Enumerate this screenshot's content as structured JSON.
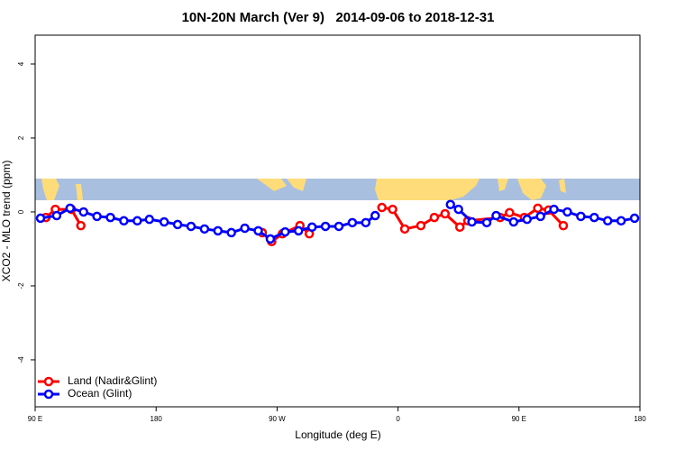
{
  "chart_data": {
    "type": "line",
    "title": "10N-20N March (Ver 9)   2014-09-06 to 2018-12-31",
    "xlabel": "Longitude (deg E)",
    "ylabel": "XCO2 - MLO trend (ppm)",
    "xlim": [
      90,
      540
    ],
    "ylim": [
      -5.27,
      4.78
    ],
    "xticks": [
      {
        "value": 90,
        "label": "90 E"
      },
      180,
      {
        "value": 270,
        "label": "90 W"
      },
      {
        "value": 360,
        "label": "0"
      },
      {
        "value": 450,
        "label": "90 E"
      },
      {
        "value": 540,
        "label": "180"
      }
    ],
    "yticks": [
      -4,
      -2,
      0,
      2,
      4
    ],
    "legend": "bottom-left",
    "series": [
      {
        "name": "Land (Nadir&Glint)",
        "color": "#ff0000",
        "x": [
          98,
          105,
          117,
          124,
          null,
          259,
          266,
          274,
          287,
          294,
          null,
          348,
          356,
          365,
          377,
          387,
          395,
          406,
          412,
          436,
          443,
          454,
          464,
          472,
          483
        ],
        "values": [
          -0.15,
          0.07,
          0.07,
          -0.37,
          null,
          -0.56,
          -0.8,
          -0.59,
          -0.37,
          -0.59,
          null,
          0.12,
          0.07,
          -0.46,
          -0.37,
          -0.15,
          -0.05,
          -0.41,
          -0.24,
          -0.15,
          -0.02,
          -0.15,
          0.1,
          0.05,
          -0.37
        ]
      },
      {
        "name": "Ocean (Glint)",
        "color": "#0000ff",
        "x": [
          94,
          106,
          116,
          126,
          136,
          146,
          156,
          166,
          175,
          186,
          196,
          206,
          216,
          226,
          236,
          246,
          256,
          265,
          276,
          286,
          296,
          306,
          316,
          326,
          336,
          343,
          null,
          399,
          405,
          415,
          426,
          433,
          446,
          456,
          466,
          476,
          486,
          496,
          506,
          516,
          526,
          536
        ],
        "values": [
          -0.17,
          -0.1,
          0.1,
          0,
          -0.12,
          -0.15,
          -0.24,
          -0.24,
          -0.2,
          -0.27,
          -0.34,
          -0.39,
          -0.46,
          -0.51,
          -0.56,
          -0.44,
          -0.51,
          -0.73,
          -0.54,
          -0.51,
          -0.41,
          -0.39,
          -0.39,
          -0.29,
          -0.29,
          -0.1,
          null,
          0.2,
          0.07,
          -0.27,
          -0.29,
          -0.1,
          -0.27,
          -0.2,
          -0.12,
          0.07,
          0,
          -0.12,
          -0.15,
          -0.24,
          -0.24,
          -0.17
        ]
      }
    ]
  }
}
